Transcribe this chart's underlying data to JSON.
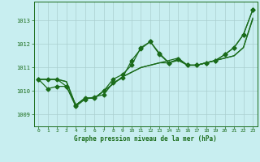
{
  "title": "Graphe pression niveau de la mer (hPa)",
  "background_color": "#c8eef0",
  "grid_color": "#aacfcf",
  "line_color": "#1a6b1a",
  "xlim": [
    -0.5,
    23.5
  ],
  "ylim": [
    1008.5,
    1013.8
  ],
  "yticks": [
    1009,
    1010,
    1011,
    1012,
    1013
  ],
  "xticks": [
    0,
    1,
    2,
    3,
    4,
    5,
    6,
    7,
    8,
    9,
    10,
    11,
    12,
    13,
    14,
    15,
    16,
    17,
    18,
    19,
    20,
    21,
    22,
    23
  ],
  "series": [
    {
      "y": [
        1010.5,
        1010.5,
        1010.5,
        1010.2,
        1009.4,
        1009.7,
        1009.7,
        1010.0,
        1010.5,
        1010.7,
        1011.1,
        1011.85,
        1012.1,
        1011.6,
        1011.2,
        1011.35,
        1011.1,
        1011.1,
        1011.2,
        1011.3,
        1011.55,
        1011.85,
        1012.4,
        1013.45
      ],
      "marker": "D",
      "markersize": 2.5,
      "linewidth": 0.9,
      "has_markers": true
    },
    {
      "y": [
        1010.5,
        1010.5,
        1010.5,
        1010.4,
        1009.4,
        1009.7,
        1009.7,
        1010.0,
        1010.3,
        1010.6,
        1010.8,
        1011.0,
        1011.1,
        1011.2,
        1011.3,
        1011.4,
        1011.1,
        1011.1,
        1011.2,
        1011.3,
        1011.4,
        1011.5,
        1011.85,
        1013.05
      ],
      "marker": null,
      "markersize": 0,
      "linewidth": 0.9,
      "has_markers": false
    },
    {
      "y": [
        1010.5,
        1010.5,
        1010.5,
        1010.4,
        1009.4,
        1009.7,
        1009.7,
        1010.0,
        1010.3,
        1010.6,
        1010.8,
        1011.0,
        1011.1,
        1011.2,
        1011.2,
        1011.3,
        1011.1,
        1011.1,
        1011.2,
        1011.3,
        1011.4,
        1011.5,
        1011.85,
        1013.1
      ],
      "marker": null,
      "markersize": 0,
      "linewidth": 0.9,
      "has_markers": false
    },
    {
      "y": [
        1010.5,
        1010.1,
        1010.2,
        1010.2,
        1009.35,
        1009.65,
        1009.75,
        1009.85,
        1010.35,
        1010.55,
        1011.3,
        1011.8,
        1012.1,
        1011.55,
        1011.2,
        1011.35,
        1011.1,
        1011.1,
        1011.2,
        1011.3,
        1011.55,
        1011.85,
        1012.4,
        1013.45
      ],
      "marker": "D",
      "markersize": 2.5,
      "linewidth": 0.9,
      "has_markers": true
    }
  ]
}
